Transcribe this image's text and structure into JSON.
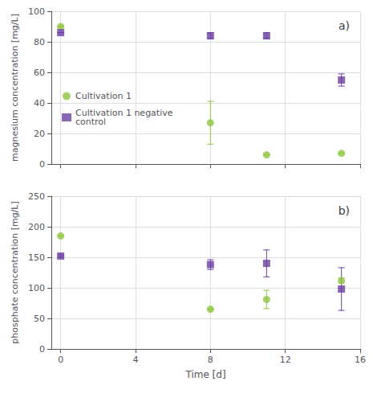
{
  "chart_data": [
    {
      "type": "scatter",
      "title": "a)",
      "ylabel": "magnesium concentration [mg/L]",
      "xlim": [
        -0.5,
        16
      ],
      "xticks": [
        0,
        4,
        8,
        12,
        16
      ],
      "ylim": [
        0,
        100
      ],
      "yticks": [
        0,
        20,
        40,
        60,
        80,
        100
      ],
      "grid": true,
      "legend": "left",
      "tick_labels": "y",
      "x": [
        0,
        8,
        11,
        15
      ],
      "series": [
        {
          "name": "Cultivation 1",
          "color": "#8dc63f",
          "marker": "circle",
          "values": [
            90,
            27,
            6,
            7
          ],
          "yerr": [
            0,
            14,
            0,
            0
          ]
        },
        {
          "name": "Cultivation 1 negative\ncontrol",
          "color": "#6b3fa0",
          "marker": "square",
          "values": [
            86,
            84,
            84,
            55
          ],
          "yerr": [
            0,
            2,
            2,
            4
          ]
        }
      ]
    },
    {
      "type": "scatter",
      "title": "b)",
      "ylabel": "phosphate concentration [mg/L]",
      "xlabel": "Time [d]",
      "xlim": [
        -0.5,
        16
      ],
      "xticks": [
        0,
        4,
        8,
        12,
        16
      ],
      "ylim": [
        0,
        250
      ],
      "yticks": [
        0,
        50,
        100,
        150,
        200,
        250
      ],
      "grid": true,
      "x": [
        0,
        8,
        11,
        15
      ],
      "series": [
        {
          "color": "#8dc63f",
          "marker": "circle",
          "values": [
            185,
            65,
            81,
            112
          ],
          "yerr": [
            0,
            0,
            15,
            4
          ]
        },
        {
          "color": "#6b3fa0",
          "marker": "square",
          "values": [
            152,
            138,
            140,
            98
          ],
          "yerr": [
            2,
            8,
            22,
            35
          ]
        }
      ]
    }
  ]
}
